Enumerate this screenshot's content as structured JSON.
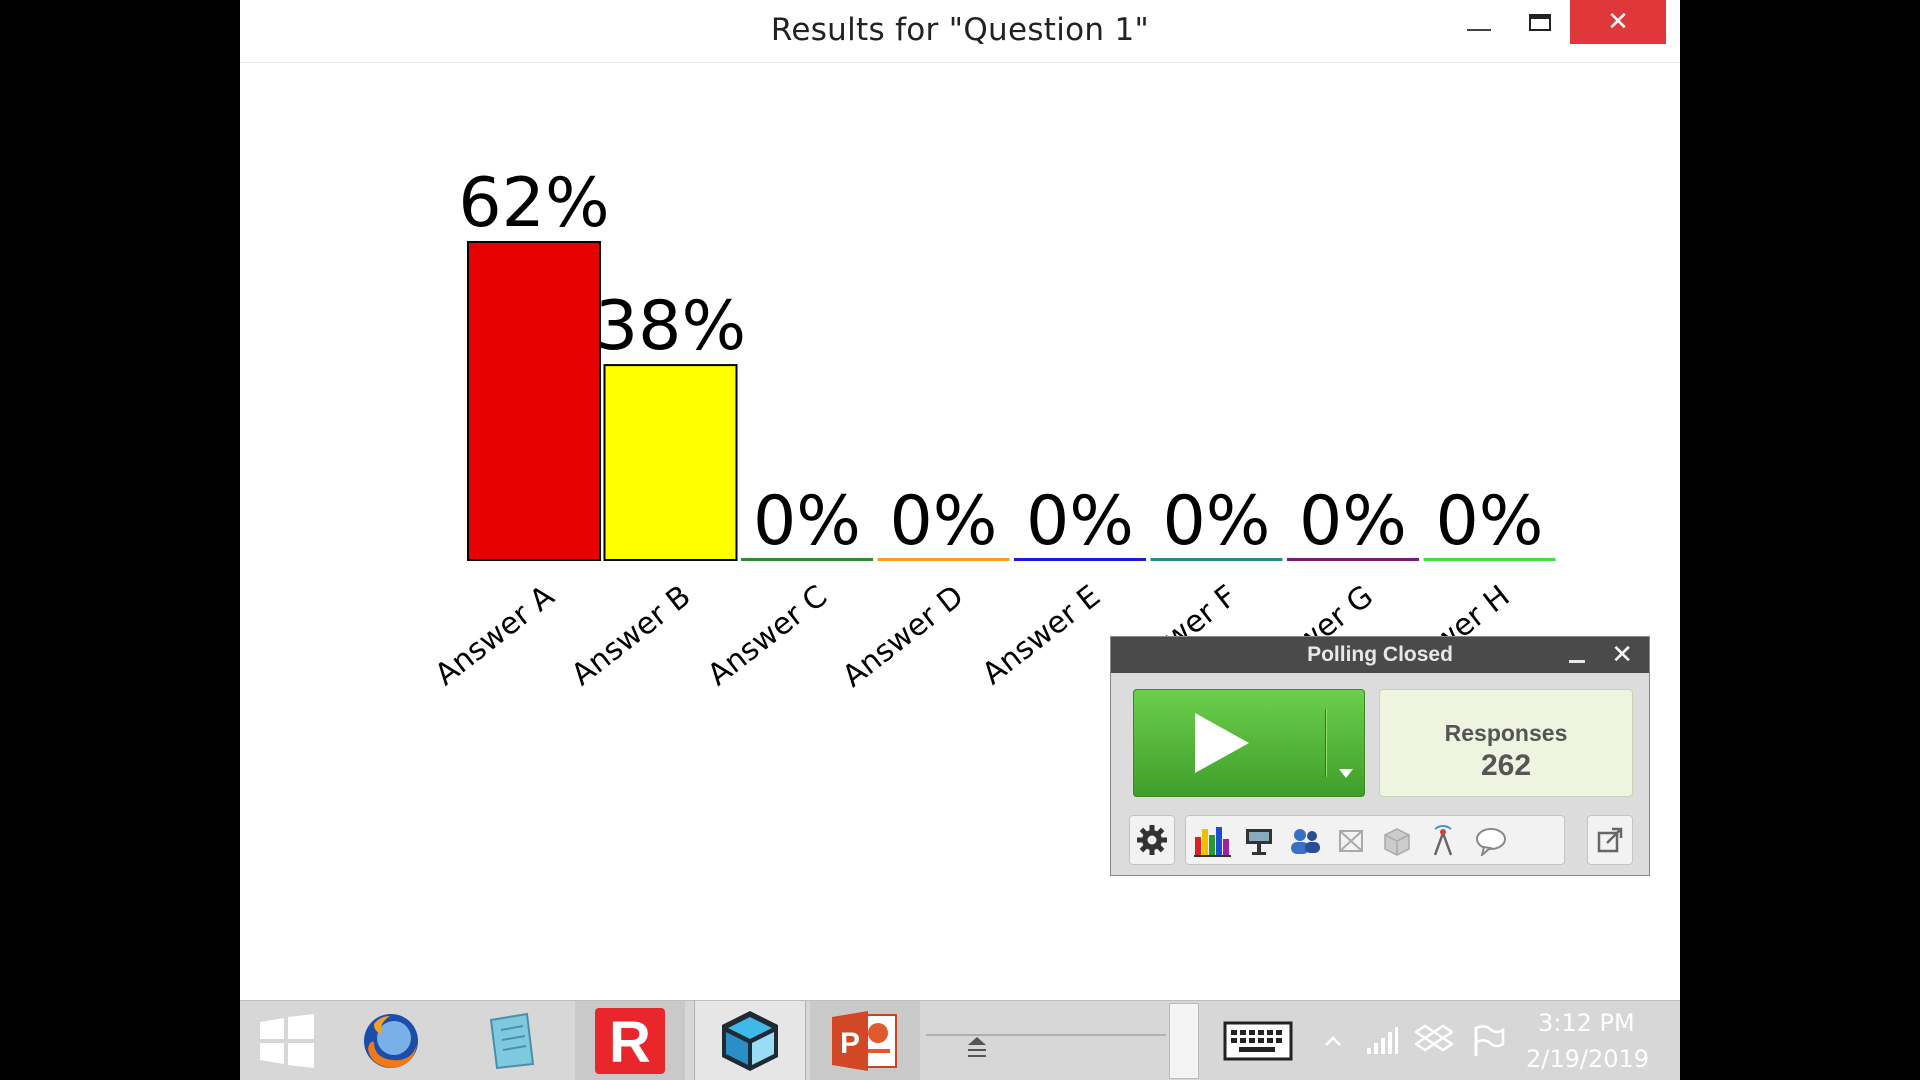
{
  "window": {
    "title": "Results for \"Question 1\"",
    "close_glyph": "✕"
  },
  "chart_data": {
    "type": "bar",
    "categories": [
      "Answer A",
      "Answer B",
      "Answer C",
      "Answer D",
      "Answer E",
      "Answer F",
      "Answer G",
      "Answer H"
    ],
    "visible_category_labels": [
      "Answer A",
      "Answer B",
      "Answer C",
      "Answer D",
      "Answer E",
      "wer F",
      "wer G",
      "wer H"
    ],
    "values": [
      62,
      38,
      0,
      0,
      0,
      0,
      0,
      0
    ],
    "data_labels": [
      "62%",
      "38%",
      "0%",
      "0%",
      "0%",
      "0%",
      "0%",
      "0%"
    ],
    "colors": [
      "#e60000",
      "#ffff00",
      "#2e8b2e",
      "#f5a020",
      "#1a1ad0",
      "#2a8a7a",
      "#7a1a7a",
      "#44dd44"
    ],
    "unit": "%",
    "ylim": [
      0,
      62
    ],
    "grid": false,
    "legend": "none"
  },
  "polling": {
    "title": "Polling Closed",
    "close_glyph": "✕",
    "responses_label": "Responses",
    "responses_count": "262",
    "tools": [
      "settings-icon",
      "chart-icon",
      "presentation-icon",
      "participants-icon",
      "grid-icon",
      "cube-icon",
      "antenna-icon",
      "comment-icon",
      "export-icon"
    ]
  },
  "taskbar": {
    "apps": [
      "windows-start-icon",
      "firefox-icon",
      "notepad-icon",
      "r-app-icon",
      "cube-app-icon",
      "powerpoint-icon"
    ],
    "clock_time": "3:12 PM",
    "clock_date": "2/19/2019"
  }
}
